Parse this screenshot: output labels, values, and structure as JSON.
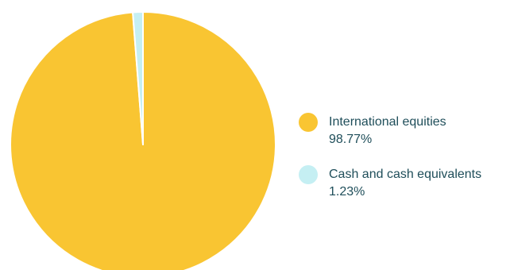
{
  "chart_data": {
    "type": "pie",
    "slices": [
      {
        "label": "International equities",
        "value": 98.77,
        "value_label": "98.77%",
        "color": "#f9c532"
      },
      {
        "label": "Cash and cash equivalents",
        "value": 1.23,
        "value_label": "1.23%",
        "color": "#c5eff3"
      }
    ],
    "start_angle": "12 o'clock",
    "direction": "clockwise",
    "legend_position": "right"
  }
}
